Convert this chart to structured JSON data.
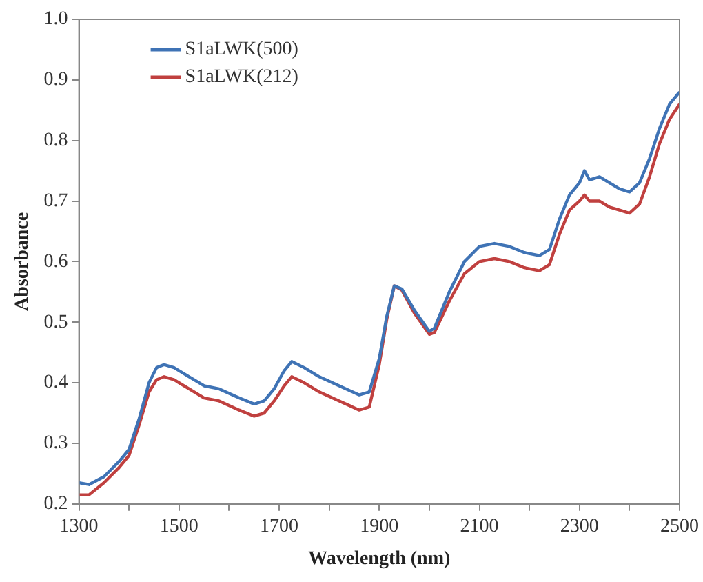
{
  "chart_data": {
    "type": "line",
    "xlabel": "Wavelength (nm)",
    "ylabel": "Absorbance",
    "x": [
      1300,
      1320,
      1350,
      1380,
      1400,
      1420,
      1440,
      1455,
      1470,
      1490,
      1520,
      1550,
      1580,
      1620,
      1650,
      1670,
      1690,
      1710,
      1725,
      1750,
      1780,
      1820,
      1860,
      1880,
      1900,
      1915,
      1930,
      1945,
      1970,
      2000,
      2010,
      2040,
      2070,
      2100,
      2130,
      2160,
      2190,
      2220,
      2240,
      2260,
      2280,
      2300,
      2310,
      2320,
      2340,
      2360,
      2380,
      2400,
      2420,
      2440,
      2460,
      2480,
      2500
    ],
    "series": [
      {
        "name": "S1aLWK(500)",
        "color": "#3f73b5",
        "values": [
          0.235,
          0.232,
          0.245,
          0.27,
          0.29,
          0.34,
          0.4,
          0.425,
          0.43,
          0.425,
          0.41,
          0.395,
          0.39,
          0.375,
          0.365,
          0.37,
          0.39,
          0.42,
          0.435,
          0.425,
          0.41,
          0.395,
          0.38,
          0.385,
          0.44,
          0.51,
          0.56,
          0.555,
          0.52,
          0.485,
          0.49,
          0.55,
          0.6,
          0.625,
          0.63,
          0.625,
          0.615,
          0.61,
          0.62,
          0.67,
          0.71,
          0.73,
          0.75,
          0.735,
          0.74,
          0.73,
          0.72,
          0.715,
          0.73,
          0.77,
          0.82,
          0.86,
          0.88
        ]
      },
      {
        "name": "S1aLWK(212)",
        "color": "#c0403f",
        "values": [
          0.215,
          0.215,
          0.235,
          0.26,
          0.28,
          0.33,
          0.385,
          0.405,
          0.41,
          0.405,
          0.39,
          0.375,
          0.37,
          0.355,
          0.345,
          0.35,
          0.37,
          0.395,
          0.41,
          0.4,
          0.385,
          0.37,
          0.355,
          0.36,
          0.43,
          0.505,
          0.56,
          0.553,
          0.515,
          0.48,
          0.483,
          0.535,
          0.58,
          0.6,
          0.605,
          0.6,
          0.59,
          0.585,
          0.595,
          0.645,
          0.685,
          0.7,
          0.71,
          0.7,
          0.7,
          0.69,
          0.685,
          0.68,
          0.695,
          0.74,
          0.795,
          0.835,
          0.86
        ]
      }
    ],
    "xlim": [
      1300,
      2500
    ],
    "xticks": [
      1300,
      {
        "value": 1400,
        "label": null
      },
      1500,
      {
        "value": 1600,
        "label": null
      },
      1700,
      {
        "value": 1800,
        "label": null
      },
      1900,
      {
        "value": 2000,
        "label": null
      },
      2100,
      {
        "value": 2200,
        "label": null
      },
      2300,
      {
        "value": 2400,
        "label": null
      },
      2500
    ],
    "ylim": [
      0.2,
      1
    ],
    "yticks": [
      0.2,
      0.3,
      0.4,
      0.5,
      0.6,
      0.7,
      0.8,
      0.9,
      {
        "value": 1,
        "label": "1.0"
      }
    ],
    "grid": false,
    "legend": "top left",
    "marker": "none",
    "line_style": "solid"
  }
}
